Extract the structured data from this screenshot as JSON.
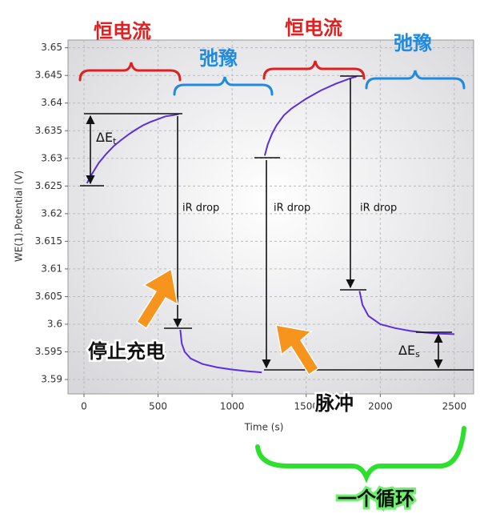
{
  "chart_data": {
    "type": "line",
    "x_label": "Time (s)",
    "y_label": "WE(1).Potential (V)",
    "x": [
      20,
      50,
      100,
      150,
      200,
      250,
      300,
      350,
      400,
      450,
      500,
      550,
      600,
      640,
      645,
      650,
      660,
      680,
      720,
      800,
      900,
      1000,
      1100,
      1200,
      1210,
      1220,
      1240,
      1270,
      1300,
      1350,
      1400,
      1500,
      1600,
      1700,
      1800,
      1840,
      1845,
      1860,
      1880,
      1920,
      2000,
      2100,
      2200,
      2300,
      2400,
      2500
    ],
    "series": [
      {
        "color": "#5b2fe0",
        "values": [
          3.6255,
          3.627,
          3.6292,
          3.6308,
          3.6322,
          3.6333,
          3.6343,
          3.6352,
          3.636,
          3.6366,
          3.6371,
          3.6376,
          3.6378,
          3.638,
          null,
          3.599,
          3.5965,
          3.595,
          3.5938,
          3.5928,
          3.5922,
          3.5918,
          3.5915,
          3.5913,
          null,
          3.6305,
          3.6325,
          3.6345,
          3.636,
          3.6378,
          3.639,
          3.6408,
          3.6423,
          3.6435,
          3.6445,
          3.6448,
          null,
          3.606,
          3.6035,
          3.6015,
          3.6,
          3.5993,
          3.5988,
          3.5985,
          3.5983,
          3.5982
        ]
      }
    ],
    "xlim": [
      -108,
      2630
    ],
    "ylim": [
      3.5874,
      3.6514
    ],
    "xticks": [
      0,
      500,
      1000,
      1500,
      2000,
      2500
    ],
    "yticks": [
      3.59,
      3.595,
      3.6,
      3.605,
      3.61,
      3.615,
      3.62,
      3.625,
      3.63,
      3.635,
      3.64,
      3.645,
      3.65
    ],
    "grid": true,
    "annotations": {
      "galvanostatic_1": "恒电流",
      "relaxation_1": "弛豫",
      "galvanostatic_2": "恒电流",
      "relaxation_2": "弛豫",
      "delta_et": {
        "main": "ΔE",
        "sub": "t"
      },
      "delta_es": {
        "main": "ΔE",
        "sub": "s"
      },
      "ir_drop_1": "iR drop",
      "ir_drop_2": "iR drop",
      "ir_drop_3": "iR drop",
      "stop_charging": "停止充电",
      "pulse": "脉冲",
      "one_cycle": "一个循环"
    }
  }
}
